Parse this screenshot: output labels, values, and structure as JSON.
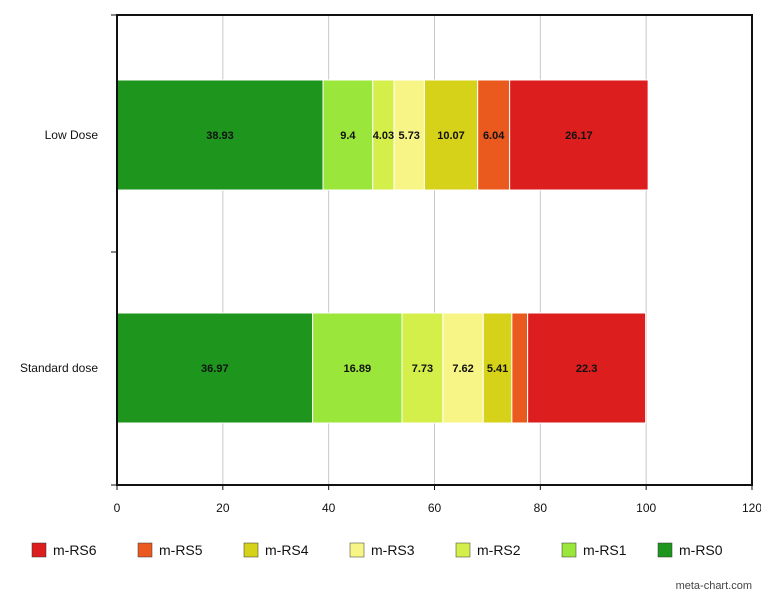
{
  "chart_data": {
    "type": "bar",
    "orientation": "horizontal",
    "stacked": true,
    "title": "",
    "xlabel": "",
    "ylabel": "",
    "xlim": [
      0,
      120
    ],
    "x_ticks": [
      0,
      20,
      40,
      60,
      80,
      100,
      120
    ],
    "grid": true,
    "categories": [
      "Low Dose",
      "Standard dose"
    ],
    "series": [
      {
        "name": "m-RS0",
        "color": "#1e961e",
        "values": [
          38.93,
          36.97
        ],
        "labels": [
          "38.93",
          "36.97"
        ]
      },
      {
        "name": "m-RS1",
        "color": "#9be63a",
        "values": [
          9.4,
          16.89
        ],
        "labels": [
          "9.4",
          "16.89"
        ]
      },
      {
        "name": "m-RS2",
        "color": "#d4ee4a",
        "values": [
          4.03,
          7.73
        ],
        "labels": [
          "4.03",
          "7.73"
        ]
      },
      {
        "name": "m-RS3",
        "color": "#f7f585",
        "values": [
          5.73,
          7.62
        ],
        "labels": [
          "5.73",
          "7.62"
        ]
      },
      {
        "name": "m-RS4",
        "color": "#d6d21a",
        "values": [
          10.07,
          5.41
        ],
        "labels": [
          "10.07",
          "5.41"
        ]
      },
      {
        "name": "m-RS5",
        "color": "#ea5a1e",
        "values": [
          6.04,
          2.98
        ],
        "labels": [
          "6.04",
          ""
        ]
      },
      {
        "name": "m-RS6",
        "color": "#dd1e1e",
        "values": [
          26.17,
          22.3
        ],
        "labels": [
          "26.17",
          "22.3"
        ]
      }
    ],
    "legend_position": "bottom",
    "legend_order": [
      "m-RS6",
      "m-RS5",
      "m-RS4",
      "m-RS3",
      "m-RS2",
      "m-RS1",
      "m-RS0"
    ]
  },
  "credit": "meta-chart.com"
}
